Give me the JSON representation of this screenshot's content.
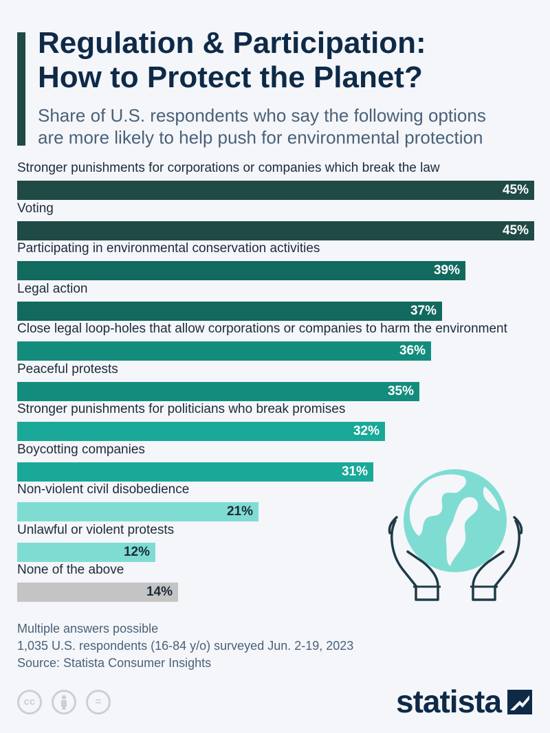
{
  "header": {
    "title_line1": "Regulation & Participation:",
    "title_line2": "How to Protect the Planet?",
    "subtitle_line1": "Share of U.S. respondents who say the following options",
    "subtitle_line2": "are more likely to help push for environmental protection"
  },
  "chart_data": {
    "type": "bar",
    "orientation": "horizontal",
    "unit": "%",
    "xlim": [
      0,
      45
    ],
    "categories": [
      "Stronger punishments for corporations or companies which break the law",
      "Voting",
      "Participating in environmental conservation activities",
      "Legal action",
      "Close legal loop-holes that allow corporations or companies to harm the environment",
      "Peaceful protests",
      "Stronger punishments for politicians who break promises",
      "Boycotting companies",
      "Non-violent civil disobedience",
      "Unlawful or violent protests",
      "None of the above"
    ],
    "values": [
      45,
      45,
      39,
      37,
      36,
      35,
      32,
      31,
      21,
      12,
      14
    ],
    "value_labels": [
      "45%",
      "45%",
      "39%",
      "37%",
      "36%",
      "35%",
      "32%",
      "31%",
      "21%",
      "12%",
      "14%"
    ],
    "colors": [
      "#1f4a46",
      "#1f4a46",
      "#12695e",
      "#12695e",
      "#138c7d",
      "#138c7d",
      "#1aa898",
      "#1aa898",
      "#7fdcd3",
      "#7fdcd3",
      "#c4c4c4"
    ],
    "value_label_colors": [
      "#ffffff",
      "#ffffff",
      "#ffffff",
      "#ffffff",
      "#ffffff",
      "#ffffff",
      "#ffffff",
      "#ffffff",
      "#1c2b3a",
      "#1c2b3a",
      "#1c2b3a"
    ]
  },
  "notes": {
    "line1": "Multiple answers possible",
    "line2": "1,035 U.S. respondents (16-84 y/o) surveyed Jun. 2-19, 2023",
    "line3": "Source: Statista Consumer Insights"
  },
  "footer": {
    "cc_label": "cc",
    "equals_label": "=",
    "brand": "statista"
  },
  "icons": [
    "globe-in-hands-icon",
    "creative-commons-icon",
    "attribution-icon",
    "no-derivatives-icon",
    "statista-logo-icon"
  ]
}
